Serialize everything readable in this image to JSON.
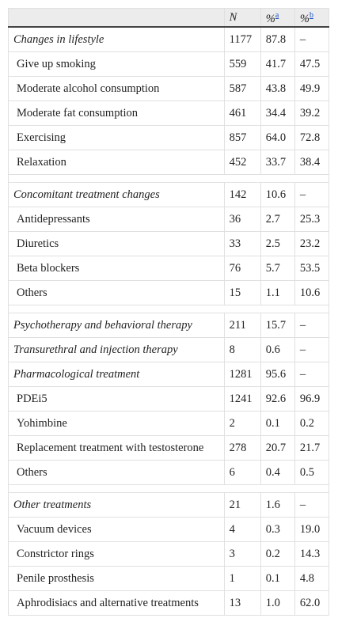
{
  "table": {
    "header": [
      {
        "text": "N"
      },
      {
        "text": "%",
        "sup": "a"
      },
      {
        "text": "%",
        "sup": "b"
      }
    ],
    "sections": [
      [
        {
          "cells": [
            "Changes in lifestyle",
            "1177",
            "87.8",
            "–"
          ],
          "items": [
            [
              "Give up smoking",
              "559",
              "41.7",
              "47.5"
            ],
            [
              "Moderate alcohol consumption",
              "587",
              "43.8",
              "49.9"
            ],
            [
              "Moderate fat consumption",
              "461",
              "34.4",
              "39.2"
            ],
            [
              "Exercising",
              "857",
              "64.0",
              "72.8"
            ],
            [
              "Relaxation",
              "452",
              "33.7",
              "38.4"
            ]
          ]
        }
      ],
      [
        {
          "cells": [
            "Concomitant treatment changes",
            "142",
            "10.6",
            "–"
          ],
          "items": [
            [
              "Antidepressants",
              "36",
              "2.7",
              "25.3"
            ],
            [
              "Diuretics",
              "33",
              "2.5",
              "23.2"
            ],
            [
              "Beta blockers",
              "76",
              "5.7",
              "53.5"
            ],
            [
              "Others",
              "15",
              "1.1",
              "10.6"
            ]
          ]
        }
      ],
      [
        {
          "cells": [
            "Psychotherapy and behavioral therapy",
            "211",
            "15.7",
            "–"
          ]
        },
        {
          "cells": [
            "Transurethral and injection therapy",
            "8",
            "0.6",
            "–"
          ]
        },
        {
          "cells": [
            "Pharmacological treatment",
            "1281",
            "95.6",
            "–"
          ],
          "items": [
            [
              "PDEi5",
              "1241",
              "92.6",
              "96.9"
            ],
            [
              "Yohimbine",
              "2",
              "0.1",
              "0.2"
            ],
            [
              "Replacement treatment with testosterone",
              "278",
              "20.7",
              "21.7"
            ],
            [
              "Others",
              "6",
              "0.4",
              "0.5"
            ]
          ]
        }
      ],
      [
        {
          "cells": [
            "Other treatments",
            "21",
            "1.6",
            "–"
          ],
          "items": [
            [
              "Vacuum devices",
              "4",
              "0.3",
              "19.0"
            ],
            [
              "Constrictor rings",
              "3",
              "0.2",
              "14.3"
            ],
            [
              "Penile prosthesis",
              "1",
              "0.1",
              "4.8"
            ],
            [
              "Aphrodisiacs and alternative treatments",
              "13",
              "1.0",
              "62.0"
            ]
          ]
        }
      ]
    ]
  }
}
